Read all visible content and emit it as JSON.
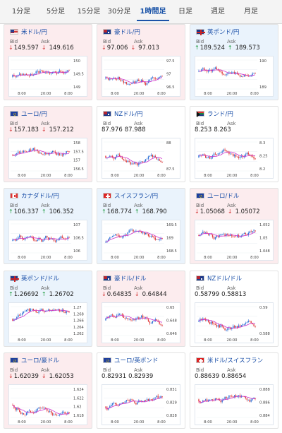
{
  "tabs": [
    {
      "label": "1分足",
      "active": false
    },
    {
      "label": "5分足",
      "active": false
    },
    {
      "label": "15分足",
      "active": false
    },
    {
      "label": "30分足",
      "active": false
    },
    {
      "label": "1時間足",
      "active": true
    },
    {
      "label": "日足",
      "active": false
    },
    {
      "label": "週足",
      "active": false
    },
    {
      "label": "月足",
      "active": false
    }
  ],
  "labels": {
    "bid": "Bid",
    "ask": "Ask"
  },
  "colors": {
    "up": "#1a9a3c",
    "down": "#d33434",
    "accent": "#1a53a8",
    "ma": "#cc33cc",
    "bullish_candle": "#2b6fd6",
    "bearish_candle": "#e03a3a"
  },
  "cards": [
    {
      "pair": "米ドル/円",
      "flag": "us",
      "direction": "down",
      "bid": "149.597",
      "ask": "149.616",
      "arrow": "↓",
      "chart": {
        "y_ticks": [
          "150",
          "149.5",
          "149"
        ],
        "x_ticks": [
          "8:00",
          "20:00",
          "8:00"
        ]
      }
    },
    {
      "pair": "豪ドル/円",
      "flag": "au",
      "direction": "down",
      "bid": "97.006",
      "ask": "97.013",
      "arrow": "↓",
      "chart": {
        "y_ticks": [
          "97.5",
          "97",
          "96.5"
        ],
        "x_ticks": [
          "8:00",
          "20:00",
          "8:00"
        ]
      }
    },
    {
      "pair": "英ポンド/円",
      "flag": "gb",
      "direction": "up",
      "bid": "189.524",
      "ask": "189.573",
      "arrow": "↑",
      "chart": {
        "y_ticks": [
          "190",
          "189"
        ],
        "x_ticks": [
          "8:00",
          "20:00",
          "8:00"
        ]
      }
    },
    {
      "pair": "ユーロ/円",
      "flag": "eu",
      "direction": "down",
      "bid": "157.183",
      "ask": "157.212",
      "arrow": "↓",
      "chart": {
        "y_ticks": [
          "158",
          "157.5",
          "157",
          "156.5"
        ],
        "x_ticks": [
          "8:00",
          "20:00",
          "8:00"
        ]
      }
    },
    {
      "pair": "NZドル/円",
      "flag": "nz",
      "direction": "flat",
      "bid": "87.976",
      "ask": "87.988",
      "arrow": "",
      "chart": {
        "y_ticks": [
          "88",
          "87.5"
        ],
        "x_ticks": [
          "8:00",
          "20:00",
          "8:00"
        ]
      }
    },
    {
      "pair": "ランド/円",
      "flag": "za",
      "direction": "flat",
      "bid": "8.253",
      "ask": "8.263",
      "arrow": "",
      "chart": {
        "y_ticks": [
          "8.3",
          "8.25",
          "8.2"
        ],
        "x_ticks": [
          "8:00",
          "20:00",
          "8:00"
        ]
      }
    },
    {
      "pair": "カナダドル/円",
      "flag": "ca",
      "direction": "up",
      "bid": "106.337",
      "ask": "106.352",
      "arrow": "↑",
      "chart": {
        "y_ticks": [
          "107",
          "106.5",
          "106"
        ],
        "x_ticks": [
          "8:00",
          "20:00",
          "8:00"
        ]
      }
    },
    {
      "pair": "スイスフラン/円",
      "flag": "ch",
      "direction": "up",
      "bid": "168.774",
      "ask": "168.790",
      "arrow": "↑",
      "chart": {
        "y_ticks": [
          "169.5",
          "169",
          "168.5"
        ],
        "x_ticks": [
          "8:00",
          "20:00",
          "8:00"
        ]
      }
    },
    {
      "pair": "ユーロ/ドル",
      "flag": "eu",
      "direction": "down",
      "bid": "1.05068",
      "ask": "1.05072",
      "arrow": "↓",
      "chart": {
        "y_ticks": [
          "1.052",
          "1.05",
          "1.048"
        ],
        "x_ticks": [
          "8:00",
          "20:00",
          "8:00"
        ]
      }
    },
    {
      "pair": "英ポンド/ドル",
      "flag": "gb",
      "direction": "up",
      "bid": "1.26692",
      "ask": "1.26702",
      "arrow": "↑",
      "chart": {
        "y_ticks": [
          "1.27",
          "1.268",
          "1.266",
          "1.264",
          "1.262"
        ],
        "x_ticks": [
          "8:00",
          "20:00",
          "8:00"
        ]
      }
    },
    {
      "pair": "豪ドル/ドル",
      "flag": "au",
      "direction": "down",
      "bid": "0.64835",
      "ask": "0.64844",
      "arrow": "↓",
      "chart": {
        "y_ticks": [
          "0.65",
          "0.648",
          "0.646"
        ],
        "x_ticks": [
          "8:00",
          "20:00",
          "8:00"
        ]
      }
    },
    {
      "pair": "NZドル/ドル",
      "flag": "nz",
      "direction": "flat",
      "bid": "0.58799",
      "ask": "0.58813",
      "arrow": "",
      "chart": {
        "y_ticks": [
          "0.59",
          "0.588"
        ],
        "x_ticks": [
          "8:00",
          "20:00",
          "8:00"
        ]
      }
    },
    {
      "pair": "ユーロ/豪ドル",
      "flag": "eu",
      "direction": "down",
      "bid": "1.62039",
      "ask": "1.62053",
      "arrow": "↓",
      "chart": {
        "y_ticks": [
          "1.624",
          "1.622",
          "1.62",
          "1.618"
        ],
        "x_ticks": [
          "8:00",
          "20:00",
          "8:00"
        ]
      }
    },
    {
      "pair": "ユーロ/英ポンド",
      "flag": "eu",
      "direction": "flat",
      "bid": "0.82931",
      "ask": "0.82939",
      "arrow": "",
      "chart": {
        "y_ticks": [
          "0.831",
          "0.829",
          "0.828"
        ],
        "x_ticks": [
          "8:00",
          "20:00",
          "8:00"
        ]
      }
    },
    {
      "pair": "米ドル/スイスフラン",
      "flag": "ch",
      "direction": "flat",
      "bid": "0.88639",
      "ask": "0.88654",
      "arrow": "",
      "chart": {
        "y_ticks": [
          "0.888",
          "0.886",
          "0.884"
        ],
        "x_ticks": [
          "8:00",
          "20:00",
          "8:00"
        ]
      }
    }
  ]
}
